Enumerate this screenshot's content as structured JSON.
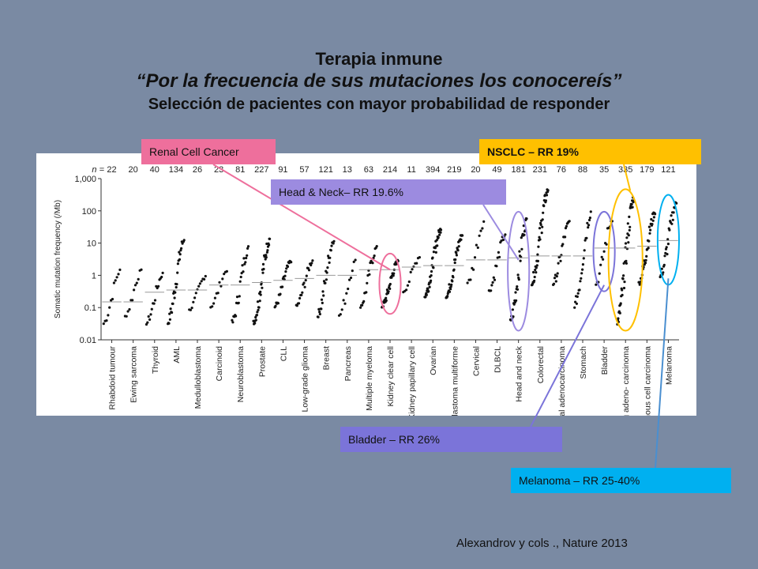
{
  "slide": {
    "title": "Terapia inmune",
    "subtitle": "“Por la frecuencia de sus mutaciones los conocereís”",
    "subtitle2": "Selección de pacientes con mayor probabilidad de responder",
    "source": "Alexandrov y cols ., Nature 2013"
  },
  "callouts": {
    "renal": "Renal Cell Cancer",
    "nsclc": "NSCLC – RR 19%",
    "head_neck": "Head & Neck– RR 19.6%",
    "bladder": "Bladder – RR 26%",
    "melanoma": "Melanoma – RR 25-40%"
  },
  "colors": {
    "background": "#7a8aa3",
    "renal": "#ee6f9c",
    "nsclc": "#ffc000",
    "head_neck": "#9c8be0",
    "bladder": "#7b74d9",
    "melanoma": "#00b0f0",
    "renal_line": "#ee6f9c",
    "nsclc_line": "#ffc000",
    "head_neck_line": "#9c8be0",
    "bladder_line": "#7b74d9",
    "melanoma_line": "#4a8fd0"
  },
  "chart_data": {
    "type": "scatter",
    "ylabel": "Somatic mutation frequency (/Mb)",
    "y_scale": "log",
    "ylim": [
      0.01,
      1000
    ],
    "yticks": [
      "1,000",
      "100",
      "10",
      "1",
      "0.1",
      "0.01"
    ],
    "n_prefix": "n =",
    "categories": [
      {
        "name": "Rhabdoid tumour",
        "n": "22",
        "median": 0.15,
        "lo": 0.03,
        "hi": 1.5
      },
      {
        "name": "Ewing sarcoma",
        "n": "20",
        "median": 0.15,
        "lo": 0.05,
        "hi": 1.5
      },
      {
        "name": "Thyroid",
        "n": "40",
        "median": 0.3,
        "lo": 0.03,
        "hi": 1.2
      },
      {
        "name": "AML",
        "n": "134",
        "median": 0.35,
        "lo": 0.03,
        "hi": 15
      },
      {
        "name": "Medulloblastoma",
        "n": "26",
        "median": 0.35,
        "lo": 0.08,
        "hi": 1.0
      },
      {
        "name": "Carcinoid",
        "n": "23",
        "median": 0.5,
        "lo": 0.1,
        "hi": 1.5
      },
      {
        "name": "Neuroblastoma",
        "n": "81",
        "median": 0.5,
        "lo": 0.03,
        "hi": 8
      },
      {
        "name": "Prostate",
        "n": "227",
        "median": 0.6,
        "lo": 0.03,
        "hi": 15
      },
      {
        "name": "CLL",
        "n": "91",
        "median": 0.7,
        "lo": 0.1,
        "hi": 3
      },
      {
        "name": "Low-grade glioma",
        "n": "57",
        "median": 0.8,
        "lo": 0.1,
        "hi": 3
      },
      {
        "name": "Breast",
        "n": "121",
        "median": 1.0,
        "lo": 0.05,
        "hi": 15
      },
      {
        "name": "Pancreas",
        "n": "13",
        "median": 1.0,
        "lo": 0.05,
        "hi": 3
      },
      {
        "name": "Multiple myeloma",
        "n": "63",
        "median": 1.5,
        "lo": 0.1,
        "hi": 8
      },
      {
        "name": "Kidney clear cell",
        "n": "214",
        "median": 1.5,
        "lo": 0.1,
        "hi": 3
      },
      {
        "name": "Kidney papillary cell",
        "n": "11",
        "median": 1.8,
        "lo": 0.3,
        "hi": 4
      },
      {
        "name": "Ovarian",
        "n": "394",
        "median": 2,
        "lo": 0.2,
        "hi": 30
      },
      {
        "name": "Glioblastoma multiforme",
        "n": "219",
        "median": 2,
        "lo": 0.2,
        "hi": 20
      },
      {
        "name": "Cervical",
        "n": "20",
        "median": 3,
        "lo": 0.5,
        "hi": 50
      },
      {
        "name": "DLBCL",
        "n": "49",
        "median": 3,
        "lo": 0.3,
        "hi": 20
      },
      {
        "name": "Head and neck",
        "n": "181",
        "median": 3.5,
        "lo": 0.03,
        "hi": 60
      },
      {
        "name": "Colorectal",
        "n": "231",
        "median": 4,
        "lo": 0.5,
        "hi": 500
      },
      {
        "name": "Oesophageal adenocarcinoma",
        "n": "76",
        "median": 4,
        "lo": 0.5,
        "hi": 50
      },
      {
        "name": "Stomach",
        "n": "88",
        "median": 4,
        "lo": 0.1,
        "hi": 100
      },
      {
        "name": "Bladder",
        "n": "35",
        "median": 7,
        "lo": 0.5,
        "hi": 60
      },
      {
        "name": "Lung adeno- carcinoma",
        "n": "335",
        "median": 7,
        "lo": 0.03,
        "hi": 300
      },
      {
        "name": "Lung squamous cell carcinoma",
        "n": "179",
        "median": 8,
        "lo": 0.5,
        "hi": 100
      },
      {
        "name": "Melanoma",
        "n": "121",
        "median": 12,
        "lo": 0.8,
        "hi": 200
      }
    ]
  }
}
